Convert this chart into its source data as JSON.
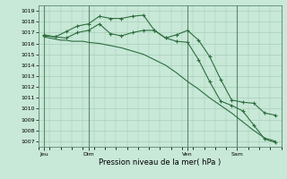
{
  "xlabel": "Pression niveau de la mer( hPa )",
  "ylim": [
    1006.5,
    1019.5
  ],
  "yticks": [
    1007,
    1008,
    1009,
    1010,
    1011,
    1012,
    1013,
    1014,
    1015,
    1016,
    1017,
    1018,
    1019
  ],
  "bg_color": "#c8e8d8",
  "line_color": "#2d6e3e",
  "grid_color": "#a0c8b0",
  "xlim": [
    0,
    132
  ],
  "day_positions": [
    3,
    27,
    81,
    108
  ],
  "day_labels": [
    "Jeu",
    "Dim",
    "Ven",
    "Sam"
  ],
  "vline_color": "#5a8a6a",
  "s1_x": [
    3,
    6,
    9,
    12,
    15,
    18,
    21,
    24,
    27,
    33,
    39,
    45,
    51,
    57,
    63,
    69,
    75,
    81,
    87,
    93,
    99,
    105,
    111,
    117,
    123,
    129
  ],
  "s1_y": [
    1016.6,
    1016.5,
    1016.4,
    1016.3,
    1016.3,
    1016.2,
    1016.2,
    1016.2,
    1016.1,
    1016.0,
    1015.8,
    1015.6,
    1015.3,
    1015.0,
    1014.5,
    1014.0,
    1013.3,
    1012.5,
    1011.8,
    1011.0,
    1010.3,
    1009.6,
    1008.8,
    1008.0,
    1007.3,
    1007.0
  ],
  "s2_x": [
    3,
    9,
    15,
    21,
    27,
    33,
    39,
    45,
    51,
    57,
    63,
    69,
    75,
    81,
    87,
    93,
    99,
    105,
    111,
    117,
    123,
    129
  ],
  "s2_y": [
    1016.7,
    1016.6,
    1017.1,
    1017.6,
    1017.8,
    1018.5,
    1018.3,
    1018.3,
    1018.5,
    1018.6,
    1017.2,
    1016.5,
    1016.8,
    1017.2,
    1016.3,
    1014.8,
    1012.7,
    1010.8,
    1010.6,
    1010.5,
    1009.6,
    1009.4
  ],
  "s3_x": [
    3,
    9,
    15,
    21,
    27,
    33,
    39,
    45,
    51,
    57,
    63,
    69,
    75,
    81,
    87,
    93,
    99,
    105,
    111,
    117,
    123,
    129
  ],
  "s3_y": [
    1016.8,
    1016.6,
    1016.5,
    1017.0,
    1017.2,
    1017.8,
    1016.9,
    1016.7,
    1017.0,
    1017.2,
    1017.2,
    1016.5,
    1016.2,
    1016.1,
    1014.5,
    1012.5,
    1010.7,
    1010.3,
    1009.8,
    1008.5,
    1007.2,
    1006.9
  ]
}
